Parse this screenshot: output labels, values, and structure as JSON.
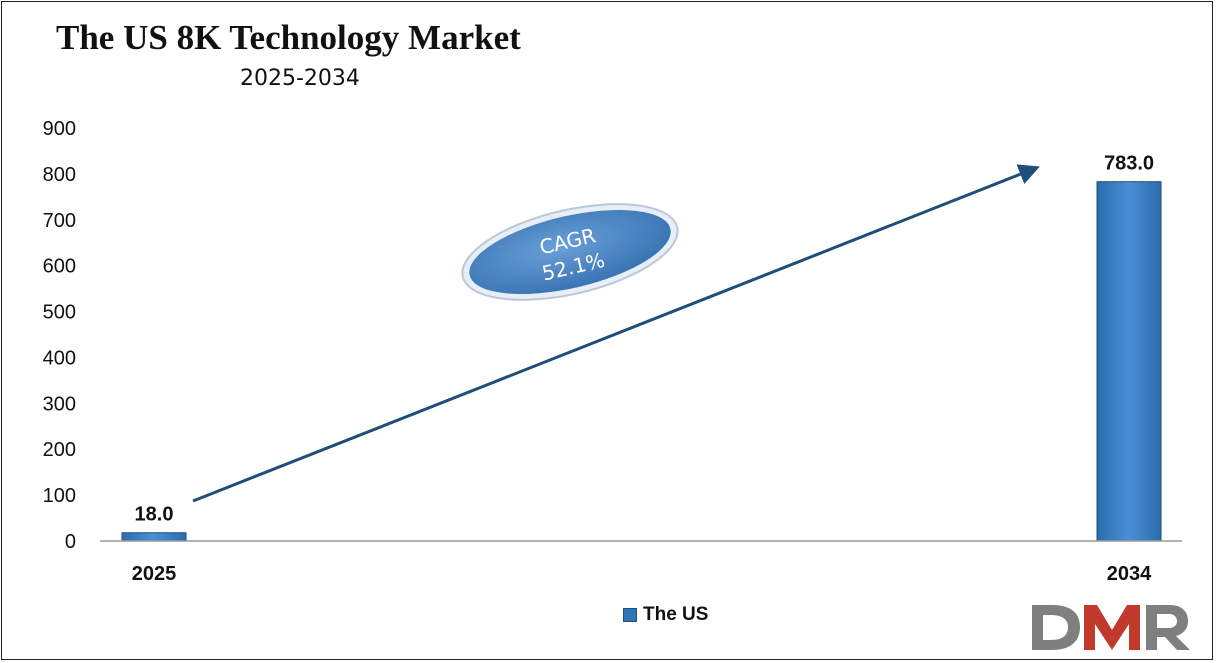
{
  "chart_data": {
    "type": "bar",
    "title": "The US 8K Technology Market",
    "subtitle": "2025-2034",
    "categories": [
      "2025",
      "2034"
    ],
    "series": [
      {
        "name": "The US",
        "values": [
          18.0,
          783.0
        ],
        "data_labels": [
          "18.0",
          "783.0"
        ]
      }
    ],
    "ylim": [
      0,
      900
    ],
    "yticks": [
      "0",
      "100",
      "200",
      "300",
      "400",
      "500",
      "600",
      "700",
      "800",
      "900"
    ],
    "grid": false,
    "legend_position": "bottom-center",
    "annotation": {
      "line1": "CAGR",
      "line2": "52.1%"
    },
    "colors": {
      "bar": "#2e75b6",
      "bar_edge": "#1f4e79",
      "arrow": "#1f4e79",
      "ellipse": "#4a86c5"
    }
  },
  "logo": {
    "text": "DMR"
  }
}
